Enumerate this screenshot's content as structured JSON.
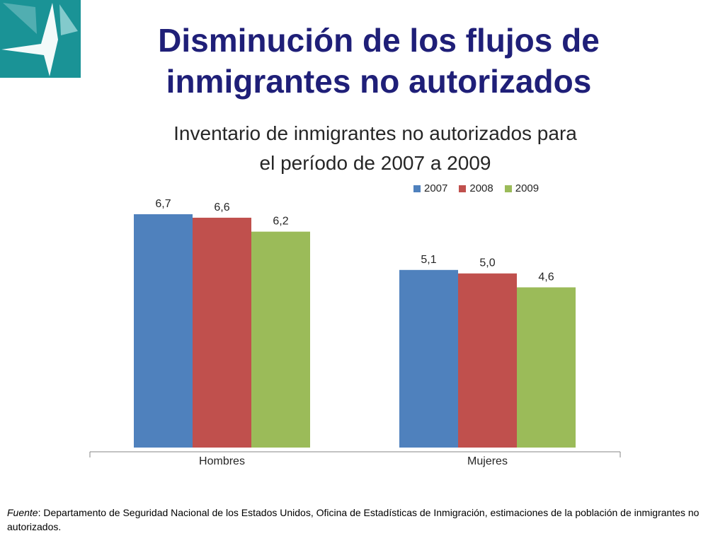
{
  "header": {
    "title_line1": "Disminución de los flujos de",
    "title_line2": "inmigrantes no autorizados"
  },
  "logo": {
    "icon": "compass-star-logo-icon",
    "bg_color": "#1a9396"
  },
  "chart_data": {
    "type": "bar",
    "title_line1": "Inventario de inmigrantes no autorizados para",
    "title_line2": "el período de 2007 a 2009",
    "categories": [
      "Hombres",
      "Mujeres"
    ],
    "series": [
      {
        "name": "2007",
        "color": "#4f81bd",
        "values": [
          6.7,
          5.1
        ],
        "labels": [
          "6,7",
          "5,1"
        ]
      },
      {
        "name": "2008",
        "color": "#c0504d",
        "values": [
          6.6,
          5.0
        ],
        "labels": [
          "6,6",
          "5,0"
        ]
      },
      {
        "name": "2009",
        "color": "#9bbb59",
        "values": [
          6.2,
          4.6
        ],
        "labels": [
          "6,2",
          "4,6"
        ]
      }
    ],
    "ylim": [
      0,
      6.7
    ],
    "grid": false,
    "legend_position": "top-right"
  },
  "footnote": {
    "label": "Fuente",
    "text": ":  Departamento de Seguridad Nacional de los Estados Unidos, Oficina de Estadísticas de Inmigración, estimaciones de la población de inmigrantes no autorizados."
  }
}
